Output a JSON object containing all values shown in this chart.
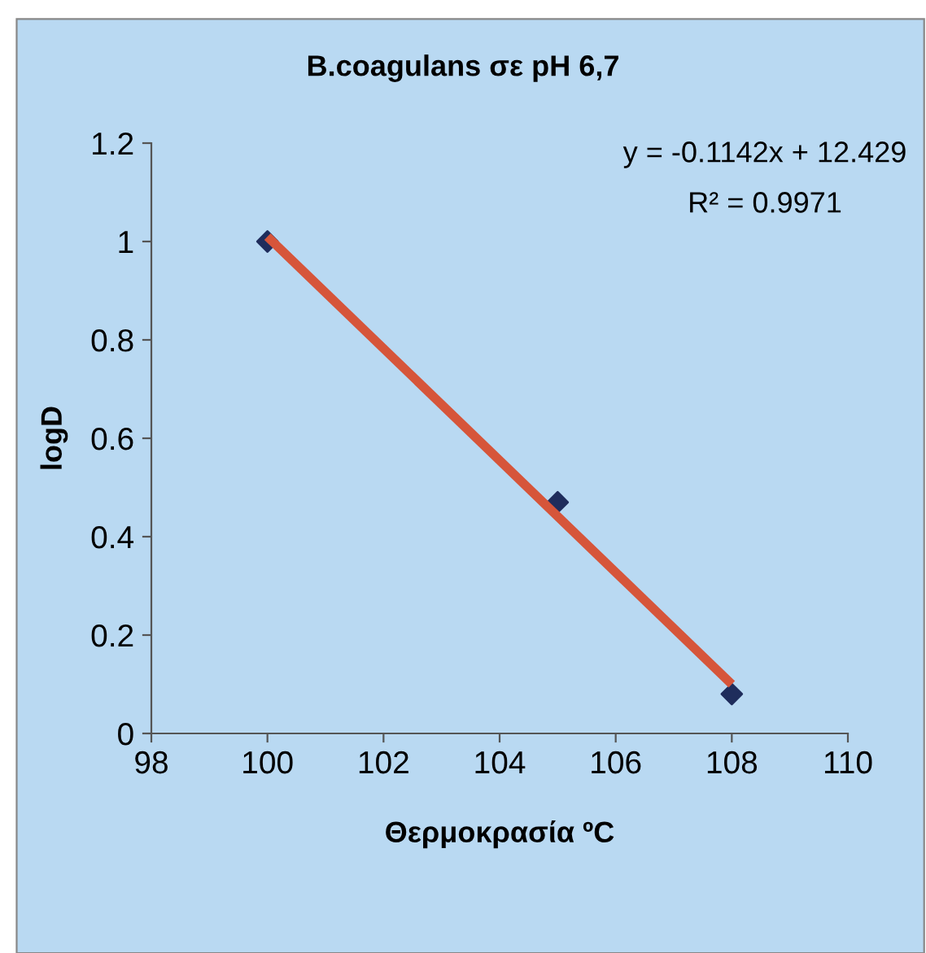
{
  "chart_data": {
    "type": "scatter",
    "title": "B.coagulans σε pH 6,7",
    "xlabel": "Θερμοκρασία ºC",
    "ylabel": "logD",
    "annotations": [
      "y = -0.1142x + 12.429",
      "R² = 0.9971"
    ],
    "series": [
      {
        "color": "#1f2d5c",
        "marker": "diamond",
        "x": [
          100,
          105,
          108
        ],
        "values": [
          1.0,
          0.47,
          0.08
        ]
      },
      {
        "type": "line",
        "color": "#d6553a",
        "marker": "none",
        "line_style": "solid",
        "x": [
          100,
          108
        ],
        "values": [
          1.01,
          0.1
        ]
      }
    ],
    "xlim": [
      98,
      110
    ],
    "xticks": [
      98,
      100,
      102,
      104,
      106,
      108,
      110
    ],
    "ylim": [
      0,
      1.2
    ],
    "yticks": [
      0,
      0.2,
      0.4,
      0.6,
      0.8,
      1,
      1.2
    ],
    "grid": false,
    "legend": false
  }
}
